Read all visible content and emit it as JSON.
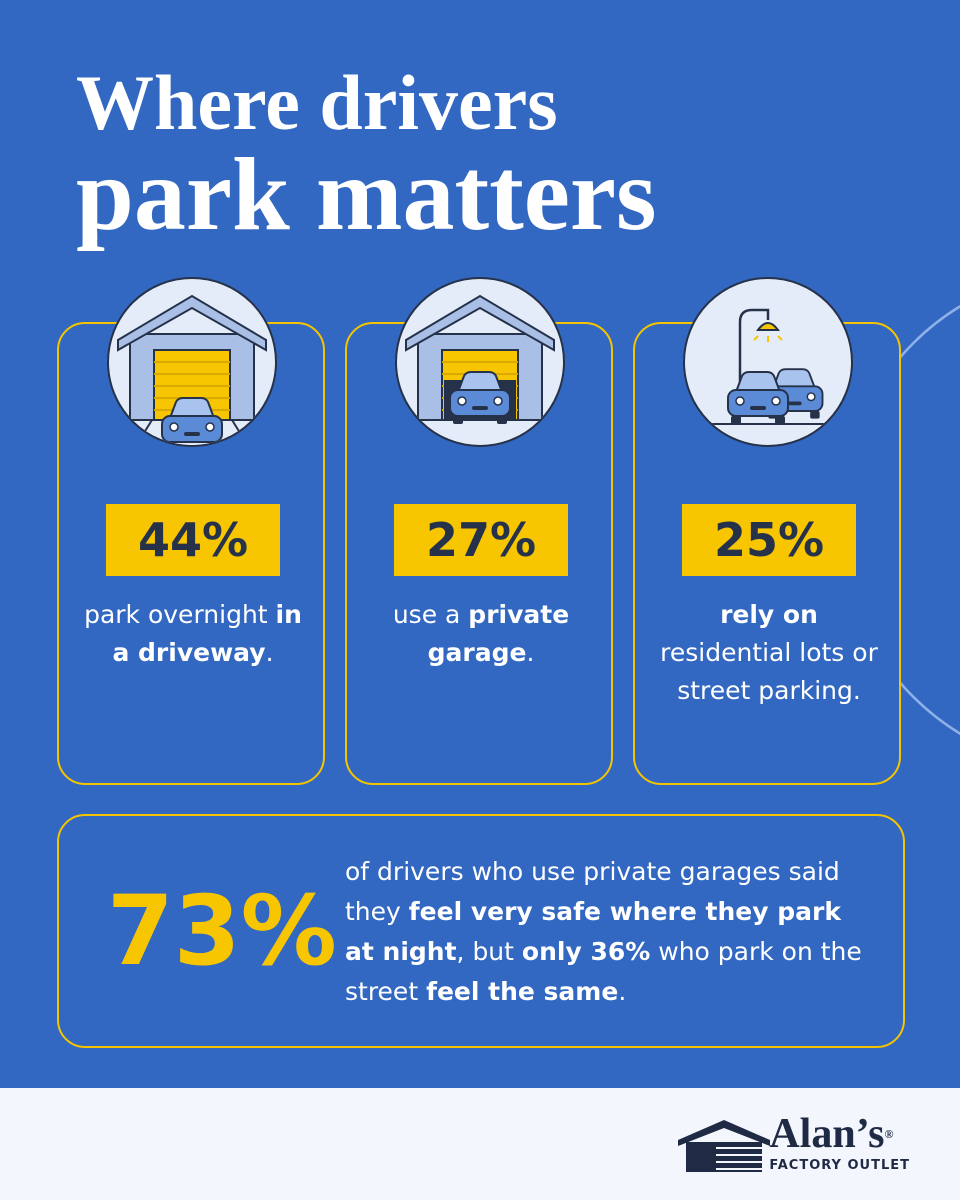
{
  "header": {
    "title_line1": "Where drivers",
    "title_line2": "park matters"
  },
  "cards": [
    {
      "stat": "44%",
      "text": [
        {
          "text": "park overnight "
        },
        {
          "text": "in a driveway",
          "bold": true
        },
        {
          "text": "."
        }
      ]
    },
    {
      "stat": "27%",
      "text": [
        {
          "text": "use a "
        },
        {
          "text": "private garage",
          "bold": true
        },
        {
          "text": "."
        }
      ]
    },
    {
      "stat": "25%",
      "text": [
        {
          "text": "rely on",
          "bold": true
        },
        {
          "text": " residential lots or street parking."
        }
      ]
    }
  ],
  "highlight": {
    "stat": "73%",
    "text": [
      {
        "text": "of drivers who use private garages said they "
      },
      {
        "text": "feel very safe where they park at night",
        "bold": true
      },
      {
        "text": ", but "
      },
      {
        "text": "only 36%",
        "bold": true
      },
      {
        "text": " who park on the street "
      },
      {
        "text": "feel the same",
        "bold": true
      },
      {
        "text": "."
      }
    ]
  },
  "footer": {
    "brand": "Alan’s",
    "trademark": "®",
    "tagline": "FACTORY OUTLET"
  }
}
